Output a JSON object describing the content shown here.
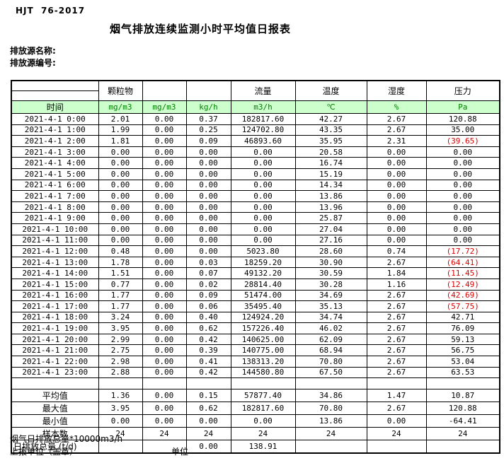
{
  "page": {
    "standard": "HJT  76-2017",
    "title": "烟气排放连续监测小时平均值日报表",
    "source_name_label": "排放源名称:",
    "source_code_label": "排放源编号:"
  },
  "table": {
    "group_headers": [
      "",
      "颗粒物",
      "",
      "",
      "流量",
      "温度",
      "湿度",
      "压力"
    ],
    "unit_row": [
      "时间",
      "mg/m3",
      "mg/m3",
      "kg/h",
      "m3/h",
      "℃",
      "%",
      "Pa"
    ],
    "colors": {
      "unit_row_bg": "#ccffcc",
      "unit_text_green": "#008000",
      "negative_value_red": "#dd0000",
      "border": "#000000"
    },
    "data_rows": [
      {
        "time": "2021-4-1 0:00",
        "values": [
          "2.01",
          "0.00",
          "0.37",
          "182817.60",
          "42.27",
          "2.67",
          "120.88"
        ]
      },
      {
        "time": "2021-4-1 1:00",
        "values": [
          "1.99",
          "0.00",
          "0.25",
          "124702.80",
          "43.35",
          "2.67",
          "35.00"
        ]
      },
      {
        "time": "2021-4-1 2:00",
        "values": [
          "1.81",
          "0.00",
          "0.09",
          "46893.60",
          "35.95",
          "2.31",
          "(39.65)"
        ]
      },
      {
        "time": "2021-4-1 3:00",
        "values": [
          "0.00",
          "0.00",
          "0.00",
          "0.00",
          "20.58",
          "0.00",
          "0.00"
        ]
      },
      {
        "time": "2021-4-1 4:00",
        "values": [
          "0.00",
          "0.00",
          "0.00",
          "0.00",
          "16.74",
          "0.00",
          "0.00"
        ]
      },
      {
        "time": "2021-4-1 5:00",
        "values": [
          "0.00",
          "0.00",
          "0.00",
          "0.00",
          "15.19",
          "0.00",
          "0.00"
        ]
      },
      {
        "time": "2021-4-1 6:00",
        "values": [
          "0.00",
          "0.00",
          "0.00",
          "0.00",
          "14.34",
          "0.00",
          "0.00"
        ]
      },
      {
        "time": "2021-4-1 7:00",
        "values": [
          "0.00",
          "0.00",
          "0.00",
          "0.00",
          "13.86",
          "0.00",
          "0.00"
        ]
      },
      {
        "time": "2021-4-1 8:00",
        "values": [
          "0.00",
          "0.00",
          "0.00",
          "0.00",
          "13.96",
          "0.00",
          "0.00"
        ]
      },
      {
        "time": "2021-4-1 9:00",
        "values": [
          "0.00",
          "0.00",
          "0.00",
          "0.00",
          "25.87",
          "0.00",
          "0.00"
        ]
      },
      {
        "time": "2021-4-1 10:00",
        "values": [
          "0.00",
          "0.00",
          "0.00",
          "0.00",
          "27.04",
          "0.00",
          "0.00"
        ]
      },
      {
        "time": "2021-4-1 11:00",
        "values": [
          "0.00",
          "0.00",
          "0.00",
          "0.00",
          "27.16",
          "0.00",
          "0.00"
        ]
      },
      {
        "time": "2021-4-1 12:00",
        "values": [
          "0.48",
          "0.00",
          "0.00",
          "5023.80",
          "28.60",
          "0.74",
          "(17.72)"
        ]
      },
      {
        "time": "2021-4-1 13:00",
        "values": [
          "1.78",
          "0.00",
          "0.03",
          "18259.20",
          "30.90",
          "2.67",
          "(64.41)"
        ]
      },
      {
        "time": "2021-4-1 14:00",
        "values": [
          "1.51",
          "0.00",
          "0.07",
          "49132.20",
          "30.59",
          "1.84",
          "(11.45)"
        ]
      },
      {
        "time": "2021-4-1 15:00",
        "values": [
          "0.77",
          "0.00",
          "0.02",
          "28814.40",
          "30.28",
          "1.16",
          "(12.49)"
        ]
      },
      {
        "time": "2021-4-1 16:00",
        "values": [
          "1.77",
          "0.00",
          "0.09",
          "51474.00",
          "34.69",
          "2.67",
          "(42.69)"
        ]
      },
      {
        "time": "2021-4-1 17:00",
        "values": [
          "1.77",
          "0.00",
          "0.06",
          "35495.40",
          "35.13",
          "2.67",
          "(57.75)"
        ]
      },
      {
        "time": "2021-4-1 18:00",
        "values": [
          "3.24",
          "0.00",
          "0.40",
          "124924.20",
          "34.74",
          "2.67",
          "42.71"
        ]
      },
      {
        "time": "2021-4-1 19:00",
        "values": [
          "3.95",
          "0.00",
          "0.62",
          "157226.40",
          "46.02",
          "2.67",
          "76.09"
        ]
      },
      {
        "time": "2021-4-1 20:00",
        "values": [
          "2.99",
          "0.00",
          "0.42",
          "140625.00",
          "62.09",
          "2.67",
          "59.13"
        ]
      },
      {
        "time": "2021-4-1 21:00",
        "values": [
          "2.75",
          "0.00",
          "0.39",
          "140775.00",
          "68.94",
          "2.67",
          "56.75"
        ]
      },
      {
        "time": "2021-4-1 22:00",
        "values": [
          "2.98",
          "0.00",
          "0.41",
          "138313.20",
          "70.80",
          "2.67",
          "53.04"
        ]
      },
      {
        "time": "2021-4-1 23:00",
        "values": [
          "2.88",
          "0.00",
          "0.42",
          "144580.80",
          "67.50",
          "2.67",
          "63.53"
        ]
      }
    ],
    "spacer_row": true,
    "summary_rows": [
      {
        "label": "平均值",
        "label_align": "center",
        "values": [
          "1.36",
          "0.00",
          "0.15",
          "57877.40",
          "34.86",
          "1.47",
          "10.87"
        ]
      },
      {
        "label": "最大值",
        "label_align": "center",
        "values": [
          "3.95",
          "0.00",
          "0.62",
          "182817.60",
          "70.80",
          "2.67",
          "120.88"
        ]
      },
      {
        "label": "最小值",
        "label_align": "center",
        "values": [
          "0.00",
          "0.00",
          "0.00",
          "0.00",
          "13.86",
          "0.00",
          "-64.41"
        ]
      },
      {
        "label": "样本数",
        "label_align": "center",
        "values": [
          "24",
          "24",
          "24",
          "24",
          "24",
          "24",
          "24"
        ]
      },
      {
        "label": "日排放总量 (t/d)",
        "label_align": "left",
        "values": [
          "",
          "",
          "0.00",
          "138.91",
          "",
          "",
          ""
        ]
      }
    ]
  },
  "footer": {
    "note": "烟气日排放总量*10000m3/h",
    "report_unit_label": "上报单位（盖章）",
    "unit_label": "单位"
  }
}
